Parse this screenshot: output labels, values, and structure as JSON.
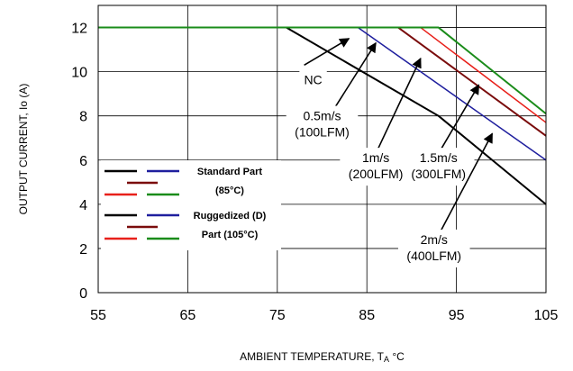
{
  "chart_data": {
    "type": "line",
    "xlabel": "AMBIENT TEMPERATURE, T",
    "xlabel_subscript": "A",
    "xlabel_unit": " °C",
    "ylabel": "OUTPUT CURRENT, Io (A)",
    "xlim": [
      55,
      105
    ],
    "ylim": [
      0,
      13
    ],
    "xticks": [
      55,
      65,
      75,
      85,
      95,
      105
    ],
    "yticks": [
      0,
      2,
      4,
      6,
      8,
      10,
      12
    ],
    "grid": true,
    "series": [
      {
        "name": "NC",
        "color": "#000000",
        "width": 2,
        "points": [
          [
            55,
            12
          ],
          [
            76,
            12
          ],
          [
            93,
            8
          ],
          [
            99,
            6
          ],
          [
            105,
            4
          ]
        ]
      },
      {
        "name": "0.5m/s (100LFM)",
        "color": "#1f1f9e",
        "width": 1.5,
        "points": [
          [
            55,
            12
          ],
          [
            84,
            12
          ],
          [
            105,
            6
          ]
        ]
      },
      {
        "name": "1m/s (200LFM)",
        "color": "#7a0c0c",
        "width": 2,
        "points": [
          [
            55,
            12
          ],
          [
            88.5,
            12
          ],
          [
            105,
            7.1
          ]
        ]
      },
      {
        "name": "1.5m/s (300LFM)",
        "color": "#e8201a",
        "width": 1.5,
        "points": [
          [
            55,
            12
          ],
          [
            91,
            12
          ],
          [
            105,
            7.7
          ]
        ]
      },
      {
        "name": "2m/s (400LFM)",
        "color": "#1a8c1a",
        "width": 2,
        "points": [
          [
            55,
            12
          ],
          [
            93,
            12
          ],
          [
            105,
            8.1
          ]
        ]
      }
    ],
    "callouts": [
      {
        "lines": [
          "NC"
        ],
        "x": 79,
        "y": 9.6,
        "tip": [
          83,
          11.5
        ],
        "tail": [
          78,
          10.3
        ]
      },
      {
        "lines": [
          "0.5m/s",
          "(100LFM)"
        ],
        "x": 80,
        "y": 7.6,
        "tip": [
          86,
          11.3
        ],
        "tail": [
          81,
          8.1
        ]
      },
      {
        "lines": [
          "1m/s",
          "(200LFM)"
        ],
        "x": 86,
        "y": 5.7,
        "tip": [
          91,
          10.6
        ],
        "tail": [
          86,
          6.3
        ]
      },
      {
        "lines": [
          "1.5m/s",
          "(300LFM)"
        ],
        "x": 93,
        "y": 5.7,
        "tip": [
          97.5,
          9.4
        ],
        "tail": [
          93,
          6.3
        ]
      },
      {
        "lines": [
          "2m/s",
          "(400LFM)"
        ],
        "x": 92.5,
        "y": 2.0,
        "tip": [
          99,
          7.2
        ],
        "tail": [
          93,
          2.6
        ]
      }
    ],
    "legend": {
      "placement": "lower-left",
      "groups": [
        {
          "label_lines": [
            "Standard Part",
            "(85°C)"
          ],
          "colors": [
            "#000000",
            "#1f1f9e",
            "#7a0c0c",
            "#e8201a",
            "#1a8c1a"
          ]
        },
        {
          "label_lines": [
            "Ruggedized (D)",
            "Part (105°C)"
          ],
          "colors": [
            "#000000",
            "#1f1f9e",
            "#7a0c0c",
            "#e8201a",
            "#1a8c1a"
          ]
        }
      ]
    }
  }
}
